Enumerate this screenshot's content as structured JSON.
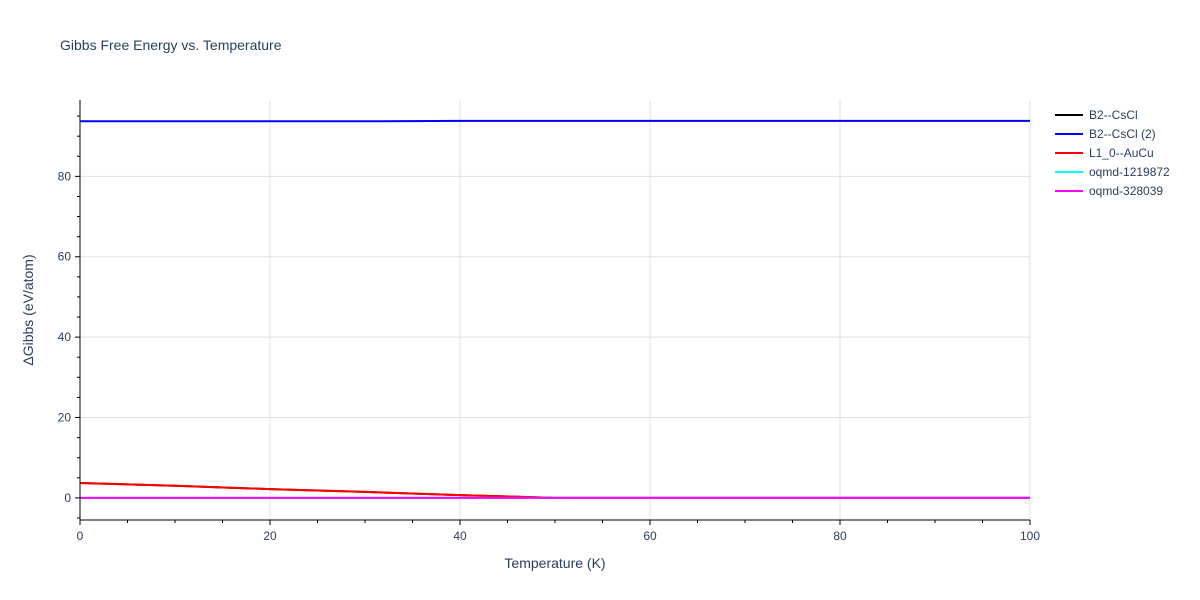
{
  "chart_data": {
    "type": "line",
    "title": "Gibbs Free Energy vs. Temperature",
    "xlabel": "Temperature (K)",
    "ylabel": "ΔGibbs (eV/atom)",
    "xlim": [
      0,
      100
    ],
    "ylim": [
      -5.5,
      99
    ],
    "x_ticks": [
      0,
      20,
      40,
      60,
      80,
      100
    ],
    "y_ticks": [
      0,
      20,
      40,
      60,
      80
    ],
    "grid": true,
    "legend_position": "top-right",
    "series": [
      {
        "name": "B2--CsCl",
        "color": "#000000",
        "x": [
          0,
          10,
          20,
          30,
          40,
          50,
          60,
          70,
          80,
          90,
          100
        ],
        "y": [
          3.7,
          3.0,
          2.2,
          1.5,
          0.7,
          0.0,
          0.0,
          0.0,
          0.0,
          0.0,
          0.0
        ]
      },
      {
        "name": "B2--CsCl (2)",
        "color": "#0000ff",
        "x": [
          0,
          10,
          20,
          30,
          40,
          50,
          60,
          70,
          80,
          90,
          100
        ],
        "y": [
          93.7,
          93.7,
          93.7,
          93.7,
          93.8,
          93.8,
          93.8,
          93.8,
          93.8,
          93.8,
          93.8
        ]
      },
      {
        "name": "L1_0--AuCu",
        "color": "#ff0000",
        "x": [
          0,
          10,
          20,
          30,
          40,
          50,
          60,
          70,
          80,
          90,
          100
        ],
        "y": [
          3.7,
          3.0,
          2.2,
          1.5,
          0.7,
          0.0,
          0.0,
          0.0,
          0.0,
          0.0,
          0.0
        ]
      },
      {
        "name": "oqmd-1219872",
        "color": "#00ffff",
        "x": [
          0,
          10,
          20,
          30,
          40,
          50,
          60,
          70,
          80,
          90,
          100
        ],
        "y": [
          0,
          0,
          0,
          0,
          0,
          0,
          0,
          0,
          0,
          0,
          0
        ]
      },
      {
        "name": "oqmd-328039",
        "color": "#ff00ff",
        "x": [
          0,
          10,
          20,
          30,
          40,
          50,
          60,
          70,
          80,
          90,
          100
        ],
        "y": [
          0,
          0,
          0,
          0,
          0,
          0,
          0,
          0,
          0,
          0,
          0
        ]
      }
    ]
  }
}
